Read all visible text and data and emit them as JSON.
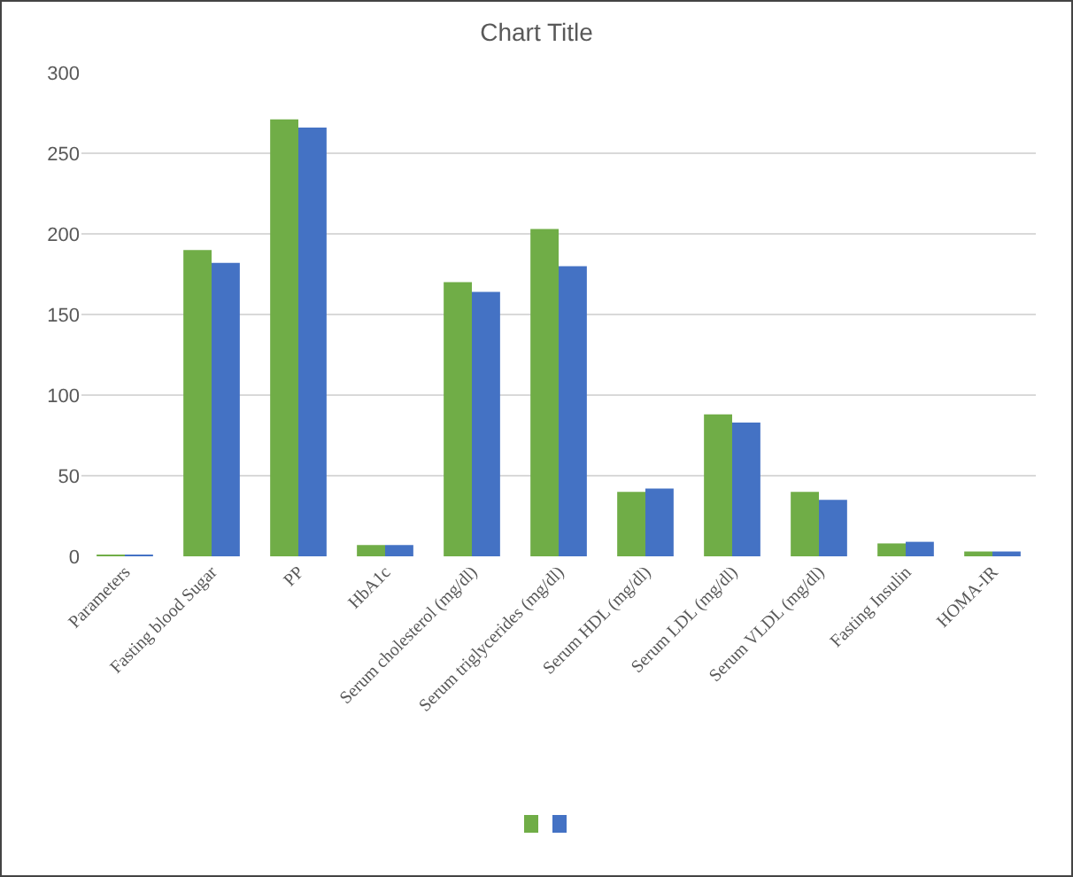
{
  "chart_data": {
    "type": "bar",
    "title": "Chart Title",
    "categories": [
      "Parameters",
      "Fasting blood Sugar",
      "PP",
      "HbA1c",
      "Serum cholesterol (mg/dl)",
      "Serum triglycerides (mg/dl)",
      "Serum HDL (mg/dl)",
      "Serum LDL (mg/dl)",
      "Serum VLDL (mg/dl)",
      "Fasting Insulin",
      "HOMA-IR"
    ],
    "series": [
      {
        "color": "#70ad47",
        "values": [
          1,
          190,
          271,
          7,
          170,
          203,
          40,
          88,
          40,
          8,
          3
        ]
      },
      {
        "color": "#4472c4",
        "values": [
          1,
          182,
          266,
          7,
          164,
          180,
          42,
          83,
          35,
          9,
          3
        ]
      }
    ],
    "ylim": [
      0,
      300
    ],
    "yticks": [
      0,
      50,
      100,
      150,
      200,
      250,
      300
    ],
    "grid": "y"
  }
}
